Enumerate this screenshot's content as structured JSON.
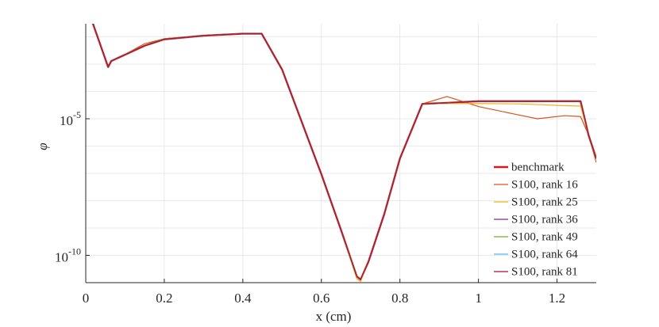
{
  "chart_data": {
    "type": "line",
    "xlabel": "x (cm)",
    "ylabel": "φ",
    "xlim": [
      0,
      1.3
    ],
    "xticks": [
      0,
      0.2,
      0.4,
      0.6,
      0.8,
      1,
      1.2
    ],
    "ylim": [
      1e-11,
      0.03
    ],
    "ylog": true,
    "yticks": [
      {
        "value": 1e-10,
        "label": "10^-10"
      },
      {
        "value": 1e-05,
        "label": "10^-5"
      }
    ],
    "ygrid": [
      1e-11,
      1e-10,
      1e-09,
      1e-08,
      1e-07,
      1e-06,
      1e-05,
      0.0001,
      0.001,
      0.01
    ],
    "grid": true,
    "legend": "southeast",
    "x": [
      0.018,
      0.057,
      0.065,
      0.09,
      0.15,
      0.2,
      0.3,
      0.4,
      0.448,
      0.5,
      0.6,
      0.65,
      0.69,
      0.7,
      0.72,
      0.76,
      0.8,
      0.857,
      0.92,
      1.0,
      1.1,
      1.15,
      1.22,
      1.26,
      1.28,
      1.3
    ],
    "series": [
      {
        "name": "benchmark",
        "color": "#d7191c",
        "width": 2.4,
        "values": [
          0.031,
          0.00078,
          0.0013,
          0.0019,
          0.0047,
          0.0081,
          0.011,
          0.013,
          0.013,
          0.00063,
          9.3e-08,
          8.5e-10,
          1.7e-11,
          1.3e-11,
          5.9e-11,
          3.2e-09,
          3.5e-07,
          3.5e-05,
          3.8e-05,
          4.4e-05,
          4.4e-05,
          4.4e-05,
          4.4e-05,
          4.4e-05,
          2.6e-06,
          3.5e-07
        ]
      },
      {
        "name": "S100, rank 16",
        "color": "#d95319",
        "width": 1.2,
        "values": [
          0.031,
          0.00078,
          0.0013,
          0.0019,
          0.0056,
          0.0085,
          0.011,
          0.013,
          0.013,
          0.00063,
          9.3e-08,
          8.5e-10,
          1.7e-11,
          1.3e-11,
          5.9e-11,
          3.2e-09,
          3.5e-07,
          3.5e-05,
          6.5e-05,
          2.8e-05,
          1.4e-05,
          1e-05,
          1.3e-05,
          1.2e-05,
          2.6e-06,
          2.5e-07
        ]
      },
      {
        "name": "S100, rank 25",
        "color": "#edb120",
        "width": 1.2,
        "values": [
          0.031,
          0.00078,
          0.0013,
          0.0019,
          0.0047,
          0.0081,
          0.011,
          0.013,
          0.013,
          0.00063,
          9.3e-08,
          8.5e-10,
          1.4e-11,
          1.1e-11,
          5.9e-11,
          3.2e-09,
          3.5e-07,
          3.5e-05,
          3.6e-05,
          3.6e-05,
          3.5e-05,
          3.3e-05,
          3e-05,
          2.9e-05,
          2.6e-06,
          3.5e-07
        ]
      },
      {
        "name": "S100, rank 36",
        "color": "#7e2f8e",
        "width": 1.2,
        "values": [
          0.031,
          0.00078,
          0.0013,
          0.0019,
          0.0047,
          0.0081,
          0.011,
          0.013,
          0.013,
          0.00063,
          9.3e-08,
          8.5e-10,
          1.7e-11,
          1.3e-11,
          5.9e-11,
          3.2e-09,
          3.5e-07,
          3.5e-05,
          3.8e-05,
          4.4e-05,
          4.4e-05,
          4.4e-05,
          4.4e-05,
          4.4e-05,
          2.6e-06,
          3.5e-07
        ]
      },
      {
        "name": "S100, rank 49",
        "color": "#77ac30",
        "width": 1.2,
        "values": [
          0.031,
          0.00078,
          0.0013,
          0.0019,
          0.0047,
          0.0081,
          0.011,
          0.013,
          0.013,
          0.00063,
          9.3e-08,
          8.5e-10,
          1.7e-11,
          1.3e-11,
          5.9e-11,
          3.2e-09,
          3.5e-07,
          3.5e-05,
          3.8e-05,
          4.4e-05,
          4.4e-05,
          4.4e-05,
          4.4e-05,
          4.4e-05,
          2.6e-06,
          3.5e-07
        ]
      },
      {
        "name": "S100, rank 64",
        "color": "#4dbeee",
        "width": 1.2,
        "values": [
          0.031,
          0.00078,
          0.0013,
          0.0019,
          0.0047,
          0.0081,
          0.011,
          0.013,
          0.013,
          0.00063,
          9.3e-08,
          8.5e-10,
          1.7e-11,
          1.3e-11,
          5.9e-11,
          3.2e-09,
          3.5e-07,
          3.5e-05,
          3.8e-05,
          4.4e-05,
          4.4e-05,
          4.4e-05,
          4.4e-05,
          4.4e-05,
          2.6e-06,
          3.5e-07
        ]
      },
      {
        "name": "S100, rank 81",
        "color": "#a2142f",
        "width": 1.2,
        "values": [
          0.031,
          0.00078,
          0.0013,
          0.0019,
          0.0047,
          0.0081,
          0.011,
          0.013,
          0.013,
          0.00063,
          9.3e-08,
          8.5e-10,
          1.7e-11,
          1.3e-11,
          5.9e-11,
          3.2e-09,
          3.5e-07,
          3.5e-05,
          3.8e-05,
          4.4e-05,
          4.4e-05,
          4.4e-05,
          4.4e-05,
          4.4e-05,
          2.6e-06,
          3.5e-07
        ]
      }
    ]
  }
}
